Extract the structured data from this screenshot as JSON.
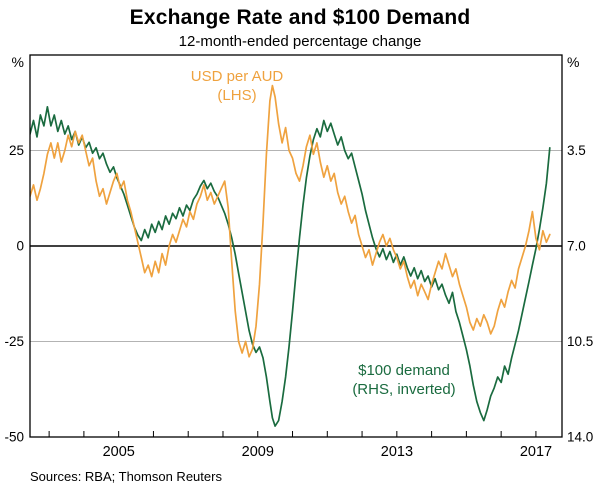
{
  "page": {
    "sources": "Sources: RBA; Thomson Reuters"
  },
  "chart_data": {
    "type": "line",
    "title": "Exchange Rate and $100 Demand",
    "subtitle": "12-month-ended percentage change",
    "grid": true,
    "left_axis": {
      "unit": "%",
      "range": [
        -50,
        50
      ],
      "labels": [
        "25",
        "0",
        "-25",
        "-50"
      ],
      "label_values": [
        25,
        0,
        -25,
        -50
      ]
    },
    "right_axis": {
      "unit": "%",
      "range": [
        0,
        14
      ],
      "inverted": true,
      "labels": [
        "3.5",
        "7.0",
        "10.5",
        "14.0"
      ],
      "label_values": [
        3.5,
        7.0,
        10.5,
        14.0
      ]
    },
    "x_axis": {
      "range": [
        2002.45,
        2017.75
      ],
      "tick_years": [
        2003,
        2004,
        2005,
        2006,
        2007,
        2008,
        2009,
        2010,
        2011,
        2012,
        2013,
        2014,
        2015,
        2016,
        2017
      ],
      "labels": [
        "2005",
        "2009",
        "2013",
        "2017"
      ],
      "label_years": [
        2005,
        2009,
        2013,
        2017
      ]
    },
    "annotations": [
      {
        "line1": "USD per AUD",
        "line2": "(LHS)",
        "color": "#EFA23F"
      },
      {
        "line1": "$100 demand",
        "line2": "(RHS, inverted)",
        "color": "#1A6B3F"
      }
    ],
    "x": [
      2002.45,
      2002.55,
      2002.65,
      2002.75,
      2002.85,
      2002.95,
      2003.05,
      2003.15,
      2003.25,
      2003.35,
      2003.45,
      2003.55,
      2003.65,
      2003.75,
      2003.85,
      2003.95,
      2004.05,
      2004.15,
      2004.25,
      2004.35,
      2004.45,
      2004.55,
      2004.65,
      2004.75,
      2004.85,
      2004.95,
      2005.05,
      2005.15,
      2005.25,
      2005.35,
      2005.45,
      2005.55,
      2005.65,
      2005.75,
      2005.85,
      2005.95,
      2006.05,
      2006.15,
      2006.25,
      2006.35,
      2006.45,
      2006.55,
      2006.65,
      2006.75,
      2006.85,
      2006.95,
      2007.05,
      2007.15,
      2007.25,
      2007.35,
      2007.45,
      2007.55,
      2007.65,
      2007.75,
      2007.85,
      2007.95,
      2008.05,
      2008.15,
      2008.25,
      2008.35,
      2008.45,
      2008.55,
      2008.65,
      2008.75,
      2008.85,
      2008.95,
      2009.05,
      2009.15,
      2009.25,
      2009.35,
      2009.42,
      2009.5,
      2009.6,
      2009.7,
      2009.8,
      2009.9,
      2010.0,
      2010.1,
      2010.2,
      2010.3,
      2010.4,
      2010.5,
      2010.6,
      2010.7,
      2010.8,
      2010.9,
      2011.0,
      2011.1,
      2011.2,
      2011.3,
      2011.4,
      2011.5,
      2011.6,
      2011.7,
      2011.8,
      2011.9,
      2012.0,
      2012.1,
      2012.2,
      2012.3,
      2012.4,
      2012.5,
      2012.6,
      2012.7,
      2012.8,
      2012.9,
      2013.0,
      2013.1,
      2013.2,
      2013.3,
      2013.4,
      2013.5,
      2013.6,
      2013.7,
      2013.8,
      2013.9,
      2014.0,
      2014.1,
      2014.2,
      2014.3,
      2014.4,
      2014.5,
      2014.6,
      2014.7,
      2014.8,
      2014.9,
      2015.0,
      2015.1,
      2015.2,
      2015.3,
      2015.4,
      2015.5,
      2015.6,
      2015.7,
      2015.8,
      2015.9,
      2016.0,
      2016.1,
      2016.2,
      2016.3,
      2016.4,
      2016.5,
      2016.6,
      2016.7,
      2016.8,
      2016.9,
      2017.0,
      2017.1,
      2017.2,
      2017.3,
      2017.4
    ],
    "series": [
      {
        "name": "USD per AUD (LHS)",
        "axis": "left",
        "color": "#EFA23F",
        "y": [
          13,
          16,
          12,
          15,
          19,
          24,
          27,
          23,
          27,
          22,
          25,
          29,
          26,
          30,
          27,
          29,
          25,
          21,
          23,
          17,
          13,
          15,
          11,
          14,
          17,
          19,
          15,
          17,
          12,
          9,
          5,
          1,
          -3,
          -7,
          -5,
          -8,
          -4,
          -7,
          -2,
          -5,
          0,
          3,
          1,
          4,
          7,
          5,
          9,
          7,
          11,
          13,
          16,
          12,
          14,
          11,
          13,
          15,
          17,
          10,
          -4,
          -17,
          -25,
          -28,
          -25,
          -29,
          -27,
          -21,
          -10,
          6,
          24,
          38,
          42,
          39,
          32,
          27,
          31,
          25,
          23,
          19,
          17,
          21,
          26,
          29,
          24,
          27,
          22,
          18,
          21,
          17,
          19,
          14,
          11,
          13,
          9,
          6,
          8,
          3,
          0,
          -3,
          -1,
          -5,
          -2,
          1,
          3,
          0,
          2,
          -1,
          -3,
          -6,
          -4,
          -8,
          -11,
          -9,
          -13,
          -10,
          -12,
          -14,
          -10,
          -7,
          -4,
          -6,
          -2,
          -5,
          -8,
          -6,
          -10,
          -13,
          -16,
          -20,
          -22,
          -19,
          -21,
          -18,
          -20,
          -23,
          -21,
          -17,
          -14,
          -16,
          -12,
          -9,
          -11,
          -6,
          -3,
          0,
          4,
          9,
          2,
          -1,
          4,
          1,
          3
        ]
      },
      {
        "name": "$100 demand (RHS, inverted)",
        "axis": "right",
        "color": "#1A6B3F",
        "y": [
          2.9,
          2.4,
          3.0,
          2.2,
          2.6,
          1.9,
          2.6,
          2.2,
          2.8,
          2.4,
          2.9,
          2.6,
          3.1,
          2.8,
          3.3,
          3.0,
          3.4,
          3.2,
          3.6,
          3.4,
          3.8,
          3.6,
          4.0,
          4.3,
          4.1,
          4.5,
          4.8,
          5.1,
          5.5,
          5.9,
          6.3,
          6.6,
          6.8,
          6.4,
          6.7,
          6.2,
          6.5,
          6.1,
          6.4,
          5.9,
          6.2,
          5.8,
          6.0,
          5.6,
          5.9,
          5.5,
          5.7,
          5.3,
          5.1,
          4.8,
          4.6,
          4.9,
          4.7,
          5.0,
          5.2,
          5.5,
          5.8,
          6.2,
          6.7,
          7.3,
          8.0,
          8.7,
          9.4,
          10.1,
          10.6,
          10.9,
          10.7,
          11.1,
          11.8,
          12.7,
          13.3,
          13.6,
          13.4,
          12.7,
          11.8,
          10.7,
          9.4,
          8.0,
          6.7,
          5.5,
          4.5,
          3.7,
          3.1,
          2.7,
          3.0,
          2.4,
          2.8,
          2.5,
          2.9,
          3.3,
          3.0,
          3.5,
          3.8,
          3.6,
          4.1,
          4.6,
          5.1,
          5.7,
          6.2,
          6.7,
          7.1,
          7.4,
          7.1,
          7.5,
          7.2,
          7.6,
          7.3,
          7.7,
          7.4,
          7.8,
          8.1,
          7.8,
          8.2,
          7.9,
          8.3,
          8.1,
          8.5,
          8.2,
          8.6,
          8.4,
          8.8,
          9.1,
          8.7,
          9.4,
          9.8,
          10.3,
          10.8,
          11.4,
          12.1,
          12.7,
          13.1,
          13.4,
          13.0,
          12.5,
          12.2,
          11.8,
          12.0,
          11.4,
          11.7,
          11.1,
          10.6,
          10.1,
          9.5,
          8.9,
          8.3,
          7.7,
          7.1,
          6.4,
          5.6,
          4.7,
          3.4
        ]
      }
    ]
  }
}
